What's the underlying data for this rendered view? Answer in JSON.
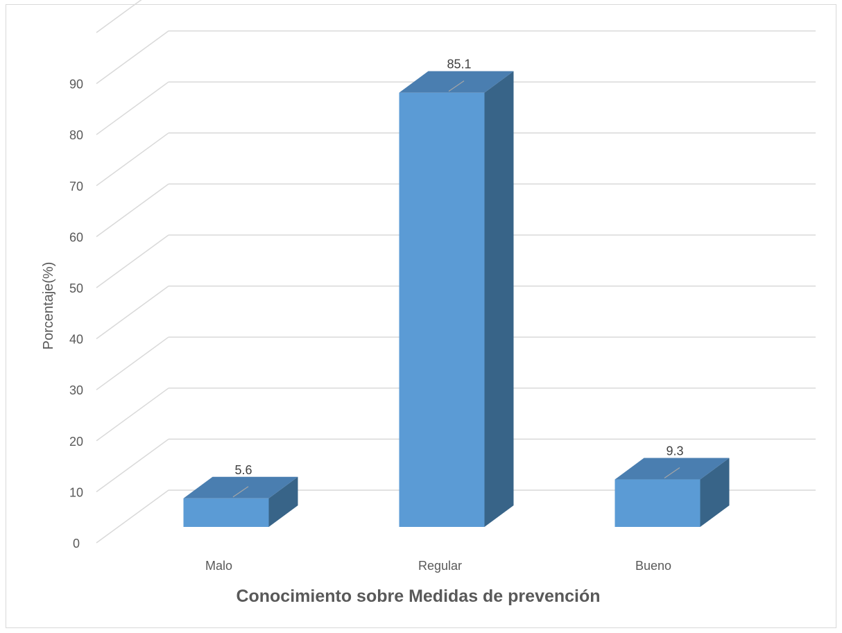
{
  "chart_data": {
    "type": "bar",
    "title": "",
    "xlabel": "Conocimiento sobre Medidas de prevención",
    "ylabel": "Porcentaje(%)",
    "categories": [
      "Malo",
      "Regular",
      "Bueno"
    ],
    "values": [
      5.6,
      85.1,
      9.3
    ],
    "data_labels": [
      "5.6",
      "85.1",
      "9.3"
    ],
    "yticks": [
      "0",
      "10",
      "20",
      "30",
      "40",
      "50",
      "60",
      "70",
      "80",
      "90"
    ],
    "ylim": [
      0,
      100
    ],
    "grid": true,
    "legend": "none",
    "style": "3d-column",
    "colors": {
      "front": "#5b9bd5",
      "top": "#4a7eb0",
      "side": "#386488",
      "grid": "#d9d9d9",
      "text": "#595959"
    }
  }
}
